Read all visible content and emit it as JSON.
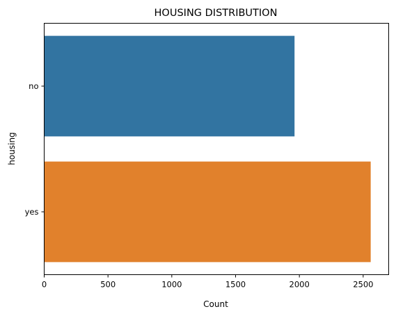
{
  "chart_data": {
    "type": "bar",
    "orientation": "horizontal",
    "title": "HOUSING DISTRIBUTION",
    "xlabel": "Count",
    "ylabel": "housing",
    "categories": [
      "no",
      "yes"
    ],
    "values": [
      1962,
      2559
    ],
    "colors": [
      "#3274a1",
      "#e1812c"
    ],
    "xlim": [
      0,
      2700
    ],
    "xticks": [
      0,
      500,
      1000,
      1500,
      2000,
      2500
    ],
    "grid": false
  }
}
